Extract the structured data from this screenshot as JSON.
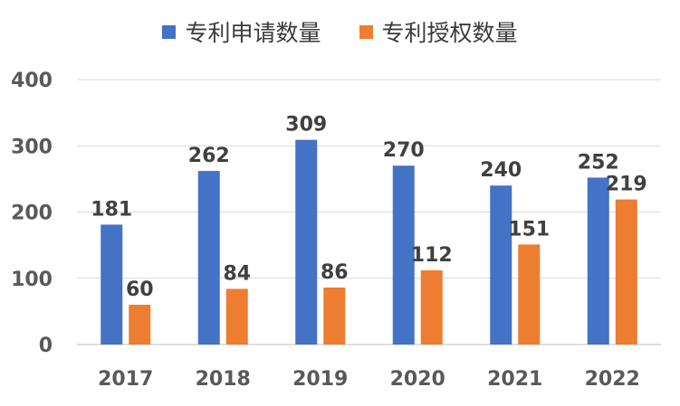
{
  "chart_data": {
    "type": "bar",
    "categories": [
      "2017",
      "2018",
      "2019",
      "2020",
      "2021",
      "2022"
    ],
    "series": [
      {
        "name": "专利申请数量",
        "color": "#4472C4",
        "values": [
          181,
          262,
          309,
          270,
          240,
          252
        ]
      },
      {
        "name": "专利授权数量",
        "color": "#ED7D31",
        "values": [
          60,
          84,
          86,
          112,
          151,
          219
        ]
      }
    ],
    "ylim": [
      0,
      400
    ],
    "yticks": [
      0,
      100,
      200,
      300,
      400
    ],
    "grid": true,
    "legend_position": "top",
    "title": "",
    "xlabel": "",
    "ylabel": ""
  }
}
